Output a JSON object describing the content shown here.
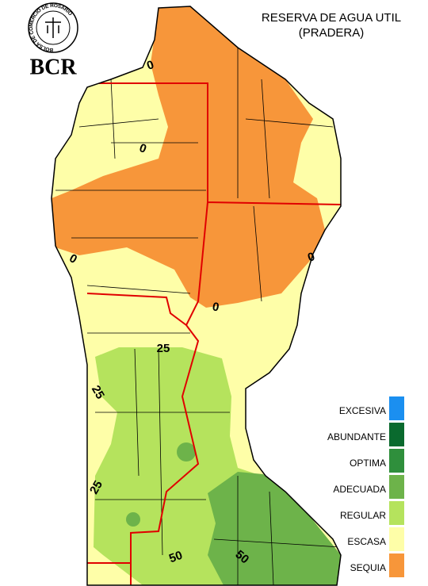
{
  "header": {
    "title": "RESERVA DE AGUA UTIL",
    "subtitle": "(PRADERA)"
  },
  "logo": {
    "ring_text": "BOLSA DE COMERCIO DE ROSARIO",
    "name": "BCR"
  },
  "contour_labels": [
    0,
    0,
    0,
    0,
    0,
    25,
    25,
    25,
    50,
    50
  ],
  "legend": [
    {
      "label": "EXCESIVA",
      "color": "#1b8ff0"
    },
    {
      "label": "ABUNDANTE",
      "color": "#0a6a2e"
    },
    {
      "label": "OPTIMA",
      "color": "#2f8f3c"
    },
    {
      "label": "ADECUADA",
      "color": "#6db34a"
    },
    {
      "label": "REGULAR",
      "color": "#b5e35d"
    },
    {
      "label": "ESCASA",
      "color": "#fefea8"
    },
    {
      "label": "SEQUIA",
      "color": "#f7963a"
    }
  ]
}
